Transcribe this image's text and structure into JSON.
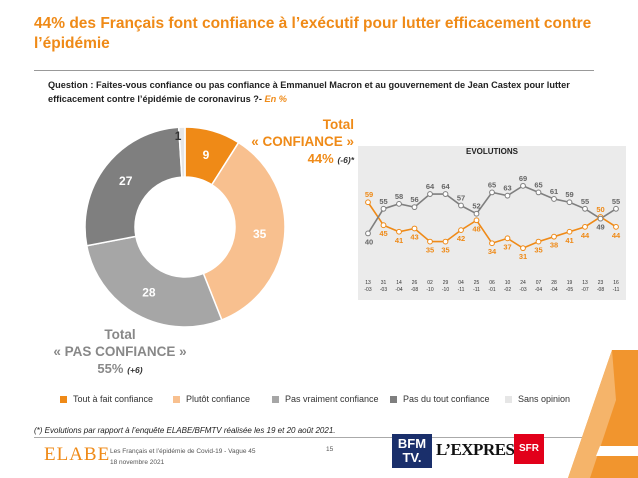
{
  "title": "44% des Français font confiance à l’exécutif pour lutter efficacement contre l’épidémie",
  "question": {
    "text": "Question : Faites-vous confiance ou pas confiance à Emmanuel Macron et au gouvernement de Jean Castex pour lutter efficacement contre l’épidémie de coronavirus ?-",
    "unit": "En %"
  },
  "totals": {
    "confiance": {
      "line1": "Total",
      "line2": "« CONFIANCE »",
      "pct": "44%",
      "evo": "(-6)*"
    },
    "pas_confiance": {
      "line1": "Total",
      "line2": "« PAS CONFIANCE »",
      "pct": "55%",
      "evo": "(+6)"
    }
  },
  "legend": {
    "tout": "Tout à fait confiance",
    "plutot": "Plutôt confiance",
    "pas_vraiment": "Pas vraiment confiance",
    "pas_du_tout": "Pas du tout confiance",
    "sans_opinion": "Sans opinion"
  },
  "footnote": "(*) Evolutions par rapport à l’enquête ELABE/BFMTV réalisée les 19 et 20 août 2021.",
  "footer": {
    "logo": "ELABE",
    "line1": "Les Français et l’épidémie de Covid-19 - Vague 45",
    "line2": "18 novembre 2021",
    "page": "15",
    "bfm_line1": "BFM",
    "bfm_line2": "TV.",
    "express": "L’EXPRESS",
    "sfr": "SFR"
  },
  "colors": {
    "tout": "#ef8a17",
    "plutot": "#f8c08f",
    "pas_vraiment": "#a6a6a6",
    "pas_du_tout": "#7f7f7f",
    "sans_opinion": "#e6e6e6",
    "accent": "#ef8a17"
  },
  "chart_data": [
    {
      "type": "pie",
      "categories": [
        "Tout à fait confiance",
        "Plutôt confiance",
        "Pas vraiment confiance",
        "Pas du tout confiance",
        "Sans opinion"
      ],
      "values": [
        9,
        35,
        28,
        27,
        1
      ],
      "labels": [
        "9",
        "35",
        "28",
        "27",
        "1"
      ]
    },
    {
      "type": "line",
      "title": "EVOLUTIONS",
      "x": [
        "13 -03",
        "31 -03",
        "14 -04",
        "26 -08",
        "02 -10",
        "29 -10",
        "04 -11",
        "25 -11",
        "06 -01",
        "10 -02",
        "24 -03",
        "07 -04",
        "28 -04",
        "19 -05",
        "13 -07",
        "23 -08",
        "16 -11"
      ],
      "x_top": [
        "13",
        "31",
        "14",
        "26",
        "02",
        "29",
        "04",
        "25",
        "06",
        "10",
        "24",
        "07",
        "28",
        "19",
        "13",
        "23",
        "16"
      ],
      "x_bottom": [
        "-03",
        "-03",
        "-04",
        "-08",
        "-10",
        "-10",
        "-11",
        "-11",
        "-01",
        "-02",
        "-03",
        "-04",
        "-04",
        "-05",
        "-07",
        "-08",
        "-11"
      ],
      "series": [
        {
          "values": [
            59,
            45,
            41,
            43,
            35,
            35,
            42,
            48,
            34,
            37,
            31,
            35,
            38,
            41,
            44,
            50,
            44
          ]
        },
        {
          "values": [
            40,
            55,
            58,
            56,
            64,
            64,
            57,
            52,
            65,
            63,
            69,
            65,
            61,
            59,
            55,
            49,
            55
          ]
        }
      ],
      "ylim": [
        25,
        75
      ]
    }
  ]
}
